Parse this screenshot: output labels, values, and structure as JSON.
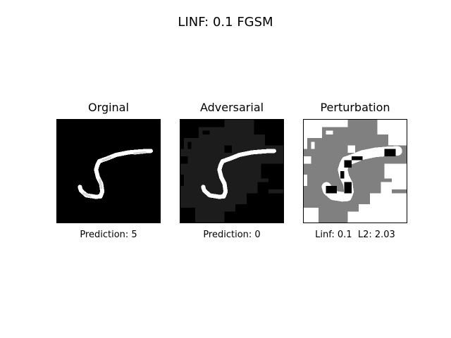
{
  "figure": {
    "title": "LINF: 0.1 FGSM"
  },
  "panels": [
    {
      "title": "Orginal",
      "caption": "Prediction: 5"
    },
    {
      "title": "Adversarial",
      "caption": "Prediction: 0"
    },
    {
      "title": "Perturbation",
      "caption": "Linf: 0.1  L2: 2.03"
    }
  ],
  "colors": {
    "background": "#ffffff",
    "digit_stroke": "#ffffff",
    "adversarial_dark": "#000000",
    "adversarial_light": "#1c1c1c",
    "perturbation_positive": "#ffffff",
    "perturbation_zero": "#808080",
    "perturbation_negative": "#000000"
  }
}
